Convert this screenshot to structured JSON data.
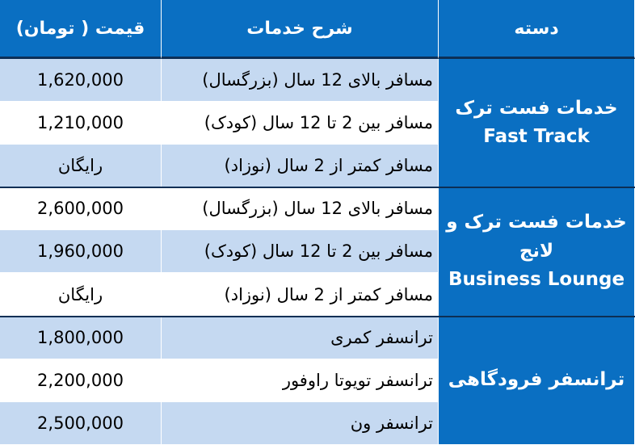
{
  "table": {
    "header": [
      "قیمت ( تومان)",
      "شرح خدمات",
      "دسته"
    ],
    "groups": [
      {
        "category": [
          "خدمات فست ترک",
          "Fast Track"
        ],
        "rows": [
          [
            "1,620,000",
            "مسافر بالای 12 سال (بزرگسال)"
          ],
          [
            "1,210,000",
            "مسافر بین 2 تا 12 سال (کودک)"
          ],
          [
            "رایگان",
            "مسافر کمتر از 2 سال (نوزاد)"
          ]
        ]
      },
      {
        "category": [
          "خدمات فست ترک و",
          "لانج",
          "Business Lounge"
        ],
        "rows": [
          [
            "2,600,000",
            "مسافر بالای 12 سال (بزرگسال)"
          ],
          [
            "1,960,000",
            "مسافر بین 2 تا 12 سال (کودک)"
          ],
          [
            "رایگان",
            "مسافر کمتر از 2 سال (نوزاد)"
          ]
        ]
      },
      {
        "category": [
          "ترانسفر فرودگاهی"
        ],
        "rows": [
          [
            "1,800,000",
            "ترانسفر کمری"
          ],
          [
            "2,200,000",
            "ترانسفر تویوتا راوفور"
          ],
          [
            "2,500,000",
            "ترانسفر ون"
          ]
        ]
      }
    ]
  }
}
